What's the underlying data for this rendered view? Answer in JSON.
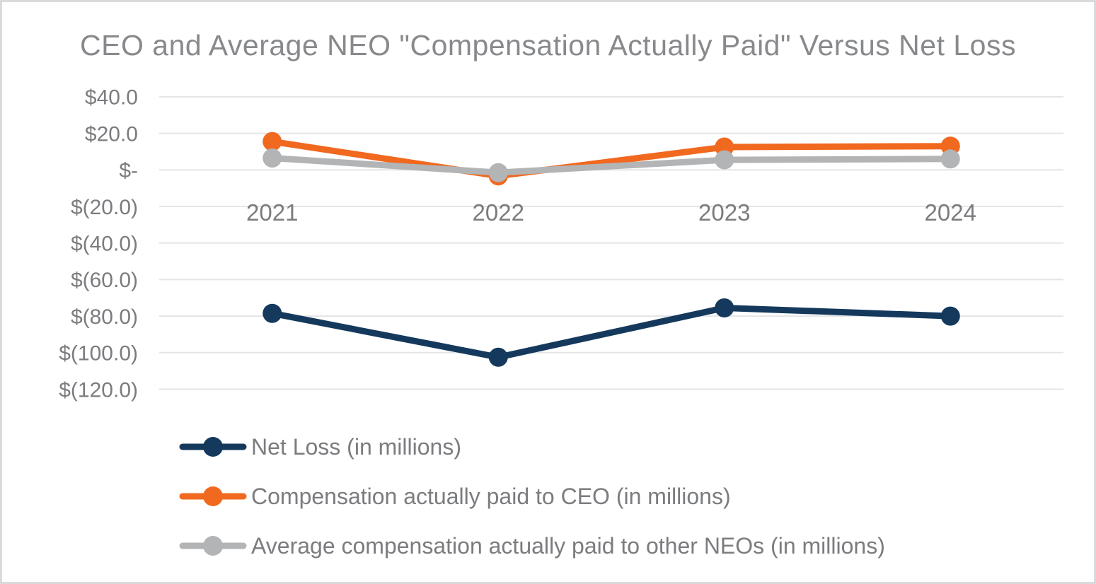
{
  "title": "CEO and Average NEO \"Compensation Actually Paid\" Versus Net Loss",
  "colors": {
    "navy": "#14395c",
    "orange": "#f1681f",
    "gray": "#b3b4b6",
    "gridline": "#e4e5e7",
    "axis_text": "#7b7c7f",
    "title_text": "#87898c",
    "frame_border": "#d8dadc"
  },
  "chart_data": {
    "type": "line",
    "title": "CEO and Average NEO \"Compensation Actually Paid\" Versus Net Loss",
    "categories": [
      "2021",
      "2022",
      "2023",
      "2024"
    ],
    "series": [
      {
        "name": "Net Loss (in millions)",
        "color": "#14395c",
        "values": [
          -78.5,
          -102.5,
          -75.5,
          -80.0
        ]
      },
      {
        "name": "Compensation actually paid to CEO (in millions)",
        "color": "#f1681f",
        "values": [
          15.5,
          -3.3,
          12.5,
          13.0
        ]
      },
      {
        "name": "Average compensation actually paid to other NEOs (in millions)",
        "color": "#b3b4b6",
        "values": [
          6.5,
          -1.5,
          5.5,
          6.0
        ]
      }
    ],
    "y_axis": {
      "ticks": [
        {
          "label": "$40.0",
          "value": 40
        },
        {
          "label": "$20.0",
          "value": 20
        },
        {
          "label": "$-",
          "value": 0
        },
        {
          "label": "$(20.0)",
          "value": -20
        },
        {
          "label": "$(40.0)",
          "value": -40
        },
        {
          "label": "$(60.0)",
          "value": -60
        },
        {
          "label": "$(80.0)",
          "value": -80
        },
        {
          "label": "$(100.0)",
          "value": -100
        },
        {
          "label": "$(120.0)",
          "value": -120
        }
      ],
      "ylim": [
        -120,
        40
      ],
      "format": "accounting, millions USD"
    },
    "xlabel": "",
    "ylabel": "",
    "grid": true,
    "legend_position": "bottom-left",
    "marker": "circle"
  }
}
